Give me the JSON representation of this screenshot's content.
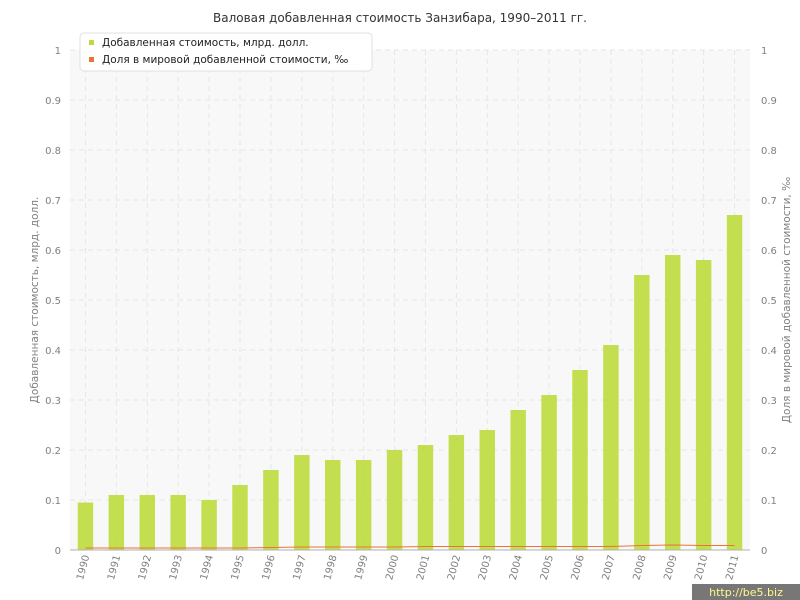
{
  "chart_data": {
    "type": "bar",
    "title": "Валовая добавленная стоимость Занзибара, 1990–2011 гг.",
    "categories": [
      "1990",
      "1991",
      "1992",
      "1993",
      "1994",
      "1995",
      "1996",
      "1997",
      "1998",
      "1999",
      "2000",
      "2001",
      "2002",
      "2003",
      "2004",
      "2005",
      "2006",
      "2007",
      "2008",
      "2009",
      "2010",
      "2011"
    ],
    "series": [
      {
        "name": "Добавленная стоимость, млрд. долл.",
        "type": "bar",
        "axis": "left",
        "color": "#bcdb3c",
        "values": [
          0.095,
          0.11,
          0.11,
          0.11,
          0.1,
          0.13,
          0.16,
          0.19,
          0.18,
          0.18,
          0.2,
          0.21,
          0.23,
          0.24,
          0.28,
          0.31,
          0.36,
          0.41,
          0.55,
          0.59,
          0.58,
          0.67
        ]
      },
      {
        "name": "Доля в мировой добавленной стоимости, ‰",
        "type": "line",
        "axis": "right",
        "color": "#e8743b",
        "values": [
          0.004,
          0.004,
          0.004,
          0.004,
          0.004,
          0.004,
          0.005,
          0.006,
          0.006,
          0.006,
          0.006,
          0.007,
          0.007,
          0.007,
          0.007,
          0.007,
          0.007,
          0.007,
          0.009,
          0.01,
          0.009,
          0.009
        ]
      }
    ],
    "ylabel": "Добавленная стоимость, млрд. долл.",
    "y2label": "Доля в мировой добавленной стоимости, ‰",
    "ylim": [
      0,
      1
    ],
    "y2lim": [
      0,
      1
    ],
    "yticks": [
      "0",
      "0.1",
      "0.2",
      "0.3",
      "0.4",
      "0.5",
      "0.6",
      "0.7",
      "0.8",
      "0.9",
      "1"
    ],
    "grid": true,
    "legend_position": "top-left"
  },
  "watermark": "http://be5.biz"
}
